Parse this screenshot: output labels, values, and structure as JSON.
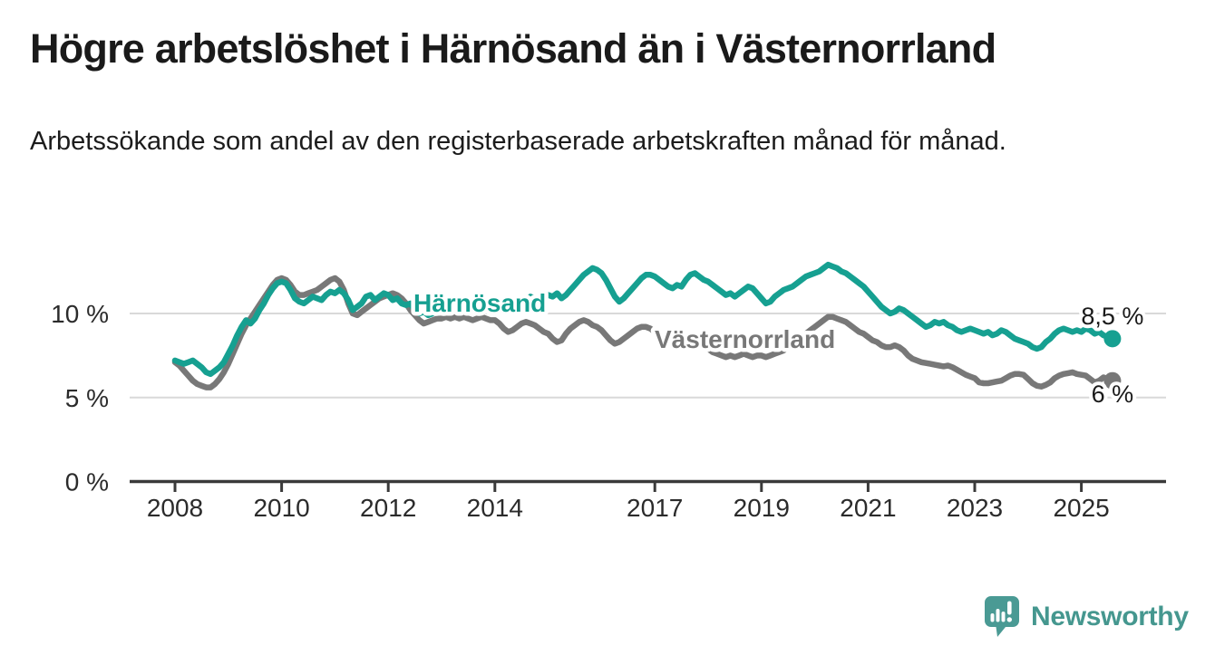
{
  "header": {
    "title": "Högre arbetslöshet i Härnösand än i Västernorrland",
    "subtitle": "Arbetssökande som andel av den registerbaserade arbetskraften månad för månad."
  },
  "chart_data": {
    "type": "line",
    "title": "Högre arbetslöshet i Härnösand än i Västernorrland",
    "subtitle": "Arbetssökande som andel av den registerbaserade arbetskraften månad för månad.",
    "unit": "%",
    "grid": "horizontal gridlines at 5 % and 10 %, dark baseline at 0 %",
    "legend": "inline series labels on lines",
    "x_start_year": 2008,
    "points_per_year": 12,
    "x_range": [
      2008.0,
      2025.58
    ],
    "ylim": [
      0,
      13.5
    ],
    "y_ticks": [
      {
        "value": 0,
        "label": "0 %"
      },
      {
        "value": 5,
        "label": "5 %"
      },
      {
        "value": 10,
        "label": "10 %"
      }
    ],
    "x_tick_years": [
      2008,
      2010,
      2012,
      2014,
      2017,
      2019,
      2021,
      2023,
      2025
    ],
    "x_tick_labels": [
      "2008",
      "2010",
      "2012",
      "2014",
      "2017",
      "2019",
      "2021",
      "2023",
      "2025"
    ],
    "series": [
      {
        "name": "Härnösand",
        "color": "#16a091",
        "end_label": "8,5 %",
        "end_value": 8.5,
        "values": [
          7.2,
          7.1,
          7.0,
          7.1,
          7.2,
          7.0,
          6.8,
          6.5,
          6.4,
          6.6,
          6.8,
          7.1,
          7.6,
          8.1,
          8.7,
          9.2,
          9.6,
          9.4,
          9.7,
          10.2,
          10.6,
          11.1,
          11.5,
          11.8,
          11.9,
          11.8,
          11.4,
          10.9,
          10.7,
          10.6,
          10.8,
          11.0,
          10.9,
          10.8,
          11.1,
          11.3,
          11.2,
          11.4,
          11.2,
          10.8,
          10.2,
          10.4,
          10.6,
          11.0,
          11.1,
          10.8,
          11.0,
          11.2,
          11.1,
          10.8,
          10.9,
          10.6,
          10.5,
          10.6,
          10.2,
          10.0,
          10.1,
          9.9,
          10.0,
          10.1,
          10.2,
          10.3,
          10.2,
          10.4,
          10.3,
          10.4,
          10.5,
          10.4,
          10.6,
          10.5,
          10.6,
          10.5,
          10.6,
          10.5,
          10.7,
          10.6,
          10.8,
          10.7,
          10.9,
          10.8,
          11.0,
          10.9,
          11.0,
          11.1,
          11.1,
          11.0,
          11.2,
          10.9,
          11.1,
          11.4,
          11.7,
          12.0,
          12.3,
          12.5,
          12.7,
          12.6,
          12.4,
          12.0,
          11.5,
          11.0,
          10.7,
          10.9,
          11.2,
          11.5,
          11.8,
          12.1,
          12.3,
          12.3,
          12.2,
          12.0,
          11.8,
          11.6,
          11.5,
          11.7,
          11.6,
          12.0,
          12.3,
          12.4,
          12.2,
          12.0,
          11.9,
          11.7,
          11.5,
          11.3,
          11.1,
          11.2,
          11.0,
          11.2,
          11.4,
          11.6,
          11.5,
          11.2,
          10.9,
          10.6,
          10.7,
          11.0,
          11.2,
          11.4,
          11.5,
          11.6,
          11.8,
          12.0,
          12.2,
          12.3,
          12.4,
          12.5,
          12.7,
          12.9,
          12.8,
          12.7,
          12.5,
          12.4,
          12.2,
          12.0,
          11.8,
          11.6,
          11.3,
          11.0,
          10.7,
          10.4,
          10.2,
          10.0,
          10.1,
          10.3,
          10.2,
          10.0,
          9.8,
          9.6,
          9.4,
          9.2,
          9.3,
          9.5,
          9.4,
          9.5,
          9.3,
          9.2,
          9.0,
          8.9,
          9.0,
          9.1,
          9.0,
          8.9,
          8.8,
          8.9,
          8.7,
          8.8,
          9.0,
          8.9,
          8.7,
          8.5,
          8.4,
          8.3,
          8.2,
          8.0,
          7.9,
          8.0,
          8.3,
          8.5,
          8.8,
          9.0,
          9.1,
          9.0,
          8.9,
          9.0,
          8.9,
          9.1,
          9.0,
          8.8,
          8.9,
          8.7,
          8.6,
          8.5
        ]
      },
      {
        "name": "Västernorrland",
        "color": "#787878",
        "end_label": "6 %",
        "end_value": 6.0,
        "values": [
          7.1,
          6.9,
          6.6,
          6.3,
          6.0,
          5.8,
          5.7,
          5.6,
          5.6,
          5.8,
          6.1,
          6.5,
          7.0,
          7.6,
          8.2,
          8.8,
          9.3,
          9.7,
          10.1,
          10.5,
          10.9,
          11.3,
          11.7,
          12.0,
          12.1,
          12.0,
          11.7,
          11.3,
          11.1,
          11.1,
          11.2,
          11.3,
          11.4,
          11.6,
          11.8,
          12.0,
          12.1,
          11.9,
          11.4,
          10.6,
          10.0,
          9.9,
          10.1,
          10.3,
          10.5,
          10.7,
          10.9,
          11.0,
          11.1,
          11.2,
          11.1,
          10.9,
          10.6,
          10.2,
          9.9,
          9.6,
          9.4,
          9.5,
          9.6,
          9.7,
          9.7,
          9.8,
          9.7,
          9.8,
          9.7,
          9.8,
          9.7,
          9.6,
          9.7,
          9.8,
          9.7,
          9.6,
          9.6,
          9.4,
          9.1,
          8.9,
          9.0,
          9.2,
          9.4,
          9.5,
          9.4,
          9.3,
          9.1,
          8.9,
          8.8,
          8.5,
          8.3,
          8.4,
          8.8,
          9.1,
          9.3,
          9.5,
          9.6,
          9.5,
          9.3,
          9.2,
          9.0,
          8.7,
          8.4,
          8.2,
          8.3,
          8.5,
          8.7,
          8.9,
          9.1,
          9.2,
          9.2,
          9.1,
          8.9,
          8.6,
          8.4,
          8.3,
          8.4,
          8.5,
          8.6,
          8.5,
          8.4,
          8.3,
          8.2,
          8.1,
          7.9,
          7.7,
          7.6,
          7.5,
          7.4,
          7.5,
          7.4,
          7.5,
          7.6,
          7.5,
          7.4,
          7.5,
          7.5,
          7.4,
          7.5,
          7.6,
          7.7,
          7.8,
          8.0,
          8.2,
          8.4,
          8.6,
          8.8,
          9.0,
          9.2,
          9.4,
          9.6,
          9.8,
          9.8,
          9.7,
          9.6,
          9.5,
          9.3,
          9.1,
          8.9,
          8.8,
          8.6,
          8.4,
          8.3,
          8.1,
          8.0,
          8.0,
          8.1,
          8.0,
          7.8,
          7.5,
          7.3,
          7.2,
          7.1,
          7.05,
          7.0,
          6.95,
          6.9,
          6.85,
          6.9,
          6.8,
          6.65,
          6.5,
          6.35,
          6.25,
          6.15,
          5.9,
          5.85,
          5.85,
          5.9,
          5.95,
          6.0,
          6.15,
          6.3,
          6.4,
          6.4,
          6.35,
          6.1,
          5.85,
          5.7,
          5.65,
          5.75,
          5.9,
          6.15,
          6.3,
          6.4,
          6.45,
          6.5,
          6.4,
          6.35,
          6.3,
          6.1,
          5.9,
          6.0,
          6.2,
          6.1,
          6.0
        ]
      }
    ]
  },
  "footer": {
    "logo_text": "Newsworthy",
    "logo_color": "#45978f",
    "logo_icon_color": "#4a9a94"
  }
}
